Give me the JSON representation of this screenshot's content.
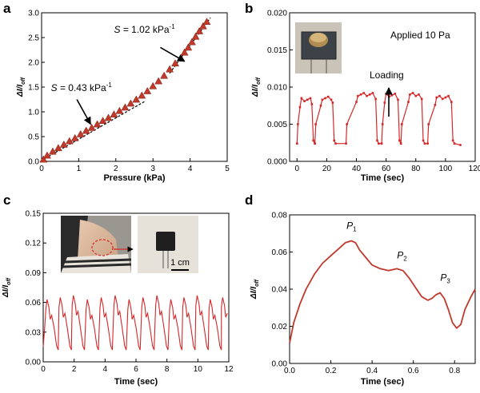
{
  "panels": {
    "a": {
      "letter": "a"
    },
    "b": {
      "letter": "b"
    },
    "c": {
      "letter": "c"
    },
    "d": {
      "letter": "d"
    }
  },
  "chart_data": [
    {
      "id": "a",
      "type": "scatter",
      "xlabel": "Pressure (kPa)",
      "ylabel": "ΔI/I",
      "ylabel_sub": "off",
      "xlim": [
        0,
        5
      ],
      "ylim": [
        0,
        3.0
      ],
      "xticks": [
        "0",
        "1",
        "2",
        "3",
        "4",
        "5"
      ],
      "yticks": [
        "0.0",
        "0.5",
        "1.0",
        "1.5",
        "2.0",
        "2.5",
        "3.0"
      ],
      "x": [
        0.05,
        0.15,
        0.3,
        0.45,
        0.6,
        0.75,
        0.9,
        1.05,
        1.2,
        1.35,
        1.5,
        1.65,
        1.8,
        1.95,
        2.1,
        2.25,
        2.4,
        2.55,
        2.7,
        2.85,
        3.0,
        3.15,
        3.3,
        3.45,
        3.6,
        3.75,
        3.85,
        3.95,
        4.05,
        4.15,
        4.25,
        4.35,
        4.45
      ],
      "y": [
        0.04,
        0.12,
        0.2,
        0.27,
        0.34,
        0.41,
        0.47,
        0.55,
        0.62,
        0.68,
        0.75,
        0.82,
        0.88,
        0.95,
        1.02,
        1.09,
        1.17,
        1.25,
        1.33,
        1.42,
        1.52,
        1.62,
        1.73,
        1.86,
        1.98,
        2.09,
        2.2,
        2.3,
        2.41,
        2.52,
        2.63,
        2.73,
        2.82
      ],
      "fits": [
        {
          "x": [
            0.0,
            2.8
          ],
          "y": [
            0.02,
            1.22
          ]
        },
        {
          "x": [
            3.45,
            4.55
          ],
          "y": [
            1.78,
            2.9
          ]
        }
      ],
      "annotations": [
        {
          "prefix": "S",
          "text": " = 0.43 kPa",
          "sup": "-1",
          "x": 0.25,
          "y": 1.42
        },
        {
          "prefix": "S",
          "text": " = 1.02 kPa",
          "sup": "-1",
          "x": 1.95,
          "y": 2.6
        }
      ],
      "arrows": [
        {
          "x1": 0.95,
          "y1": 1.25,
          "x2": 1.32,
          "y2": 0.75
        },
        {
          "x1": 3.2,
          "y1": 2.3,
          "x2": 3.85,
          "y2": 2.02
        }
      ],
      "marker_color": "#c0392b",
      "fit_color": "#000000"
    },
    {
      "id": "b",
      "type": "line",
      "xlabel": "Time (sec)",
      "ylabel": "ΔI/I",
      "ylabel_sub": "off",
      "xlim": [
        -5,
        120
      ],
      "ylim": [
        0,
        0.02
      ],
      "xticks": [
        "0",
        "20",
        "40",
        "60",
        "80",
        "100",
        "120"
      ],
      "yticks": [
        "0.000",
        "0.005",
        "0.010",
        "0.015",
        "0.020"
      ],
      "note": "Applied 10 Pa",
      "loading_label": "Loading",
      "inset": "device-photo",
      "series_color": "#d62728",
      "cycles": [
        {
          "t0": 0,
          "rise": 2,
          "high": 0.0085,
          "fall": 10
        },
        {
          "t0": 12,
          "rise": 16,
          "high": 0.0087,
          "fall": 24
        },
        {
          "t0": 33,
          "rise": 40,
          "high": 0.0092,
          "fall": 53
        },
        {
          "t0": 57,
          "rise": 59,
          "high": 0.0091,
          "fall": 68
        },
        {
          "t0": 70,
          "rise": 75,
          "high": 0.0092,
          "fall": 84
        },
        {
          "t0": 88,
          "rise": 93,
          "high": 0.0088,
          "fall": 104
        }
      ],
      "baseline": 0.002,
      "end_t": 110
    },
    {
      "id": "c",
      "type": "line",
      "xlabel": "Time (sec)",
      "ylabel": "ΔI/I",
      "ylabel_sub": "off",
      "xlim": [
        0,
        12
      ],
      "ylim": [
        0,
        0.15
      ],
      "xticks": [
        "0",
        "2",
        "4",
        "6",
        "8",
        "10",
        "12"
      ],
      "yticks": [
        "0.00",
        "0.03",
        "0.06",
        "0.09",
        "0.12",
        "0.15"
      ],
      "scale_bar_label": "1 cm",
      "inset": "neck-photo-and-sensor",
      "series_color": "#d62728",
      "peaks_t": [
        0.25,
        1.1,
        1.95,
        2.85,
        3.75,
        4.65,
        5.55,
        6.45,
        7.35,
        8.25,
        9.1,
        9.95,
        10.8,
        11.6
      ],
      "peak_value": 0.065,
      "baseline": 0.012
    },
    {
      "id": "d",
      "type": "line",
      "xlabel": "Time (sec)",
      "ylabel": "ΔI/I",
      "ylabel_sub": "off",
      "xlim": [
        0,
        0.9
      ],
      "ylim": [
        0,
        0.08
      ],
      "xticks": [
        "0.0",
        "0.2",
        "0.4",
        "0.6",
        "0.8"
      ],
      "yticks": [
        "0.00",
        "0.02",
        "0.04",
        "0.06",
        "0.08"
      ],
      "series_color": "#c0392b",
      "x": [
        0.0,
        0.02,
        0.05,
        0.08,
        0.12,
        0.16,
        0.2,
        0.24,
        0.27,
        0.3,
        0.32,
        0.34,
        0.37,
        0.4,
        0.44,
        0.48,
        0.52,
        0.55,
        0.58,
        0.61,
        0.64,
        0.67,
        0.69,
        0.71,
        0.73,
        0.75,
        0.77,
        0.79,
        0.81,
        0.83,
        0.85,
        0.88,
        0.9
      ],
      "y": [
        0.011,
        0.022,
        0.032,
        0.04,
        0.048,
        0.054,
        0.058,
        0.062,
        0.065,
        0.066,
        0.065,
        0.061,
        0.057,
        0.053,
        0.051,
        0.05,
        0.051,
        0.05,
        0.046,
        0.041,
        0.036,
        0.034,
        0.035,
        0.037,
        0.038,
        0.035,
        0.029,
        0.022,
        0.019,
        0.021,
        0.029,
        0.036,
        0.04
      ],
      "peaks": [
        {
          "label": "P",
          "sub": "1",
          "x": 0.3,
          "y": 0.0725
        },
        {
          "label": "P",
          "sub": "2",
          "x": 0.545,
          "y": 0.0565
        },
        {
          "label": "P",
          "sub": "3",
          "x": 0.755,
          "y": 0.0445
        }
      ]
    }
  ]
}
